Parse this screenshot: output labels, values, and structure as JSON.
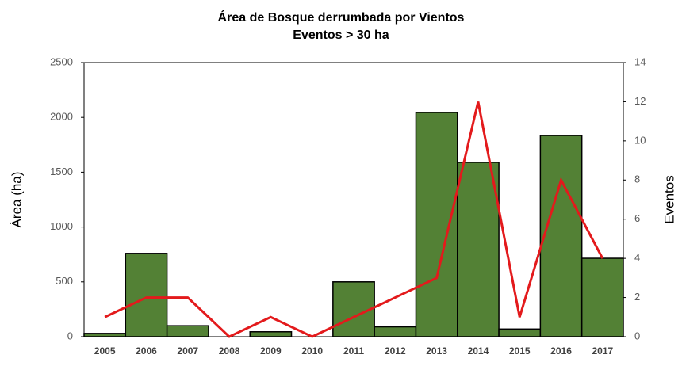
{
  "chart_data": {
    "type": "bar-line",
    "title": "Área de Bosque derrumbada por Vientos",
    "subtitle": "Eventos > 30 ha",
    "ylabel": "Área (ha)",
    "y2label": "Eventos",
    "categories": [
      "2005",
      "2006",
      "2007",
      "2008",
      "2009",
      "2010",
      "2011",
      "2012",
      "2013",
      "2014",
      "2015",
      "2016",
      "2017"
    ],
    "series": [
      {
        "type": "bar",
        "color": "#538135",
        "values": [
          30,
          760,
          100,
          0,
          45,
          0,
          500,
          90,
          2045,
          1590,
          70,
          1835,
          715
        ]
      },
      {
        "type": "line",
        "color": "#e31a1c",
        "axis": "y2",
        "values": [
          1,
          2,
          2,
          0,
          1,
          0,
          1,
          2,
          3,
          12,
          1,
          8,
          4
        ]
      }
    ],
    "ylim": [
      0,
      2500
    ],
    "yticks": [
      0,
      500,
      1000,
      1500,
      2000,
      2500
    ],
    "y2lim": [
      0,
      14
    ],
    "y2ticks": [
      0,
      2,
      4,
      6,
      8,
      10,
      12,
      14
    ]
  }
}
